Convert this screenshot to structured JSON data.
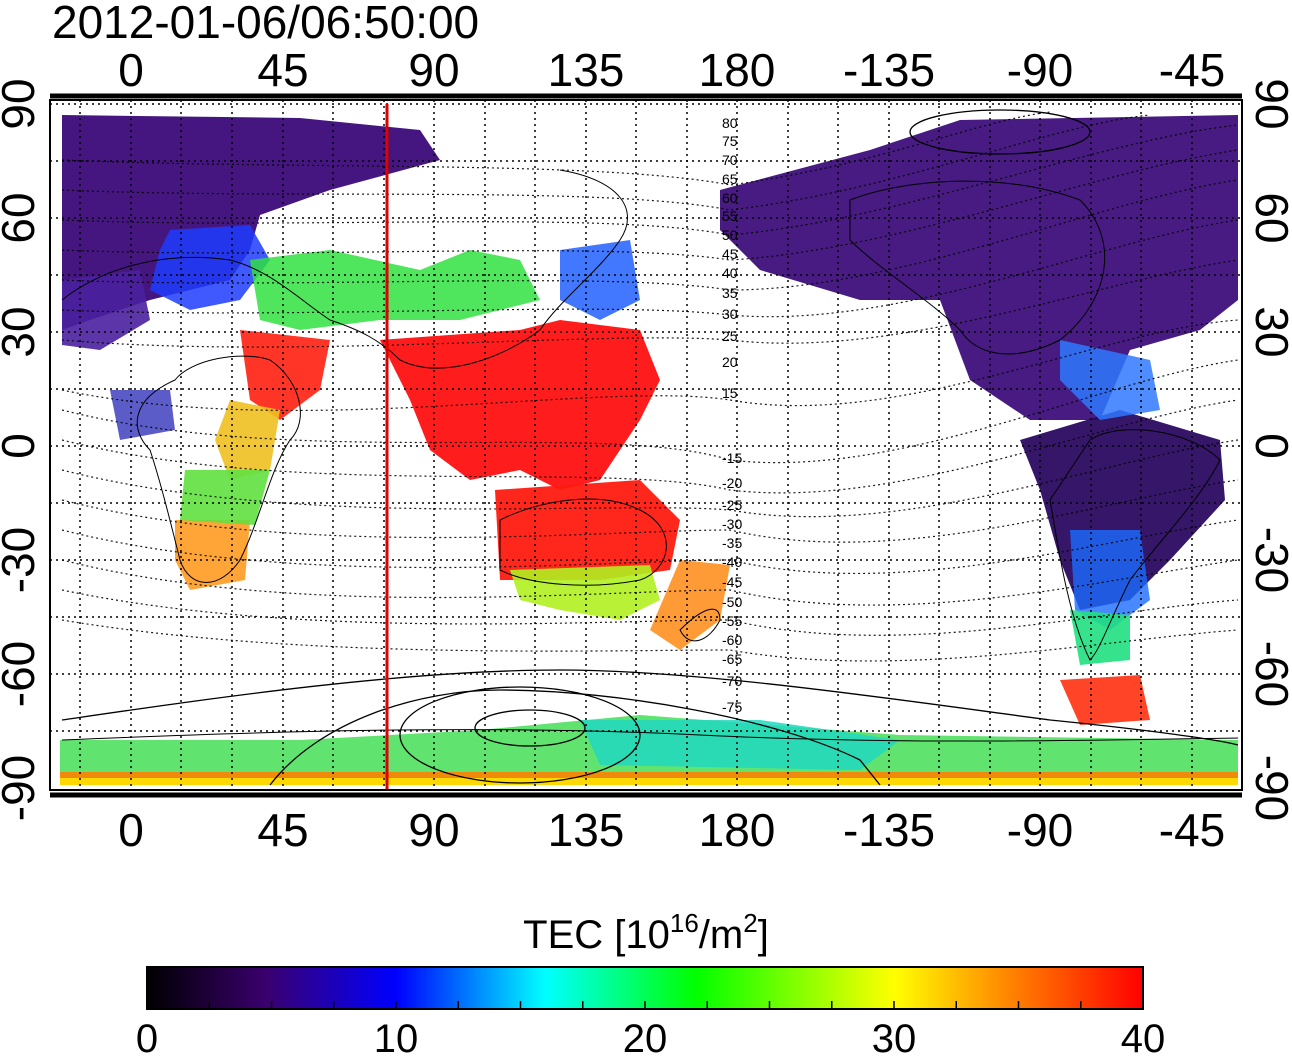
{
  "timestamp": "2012-01-06/06:50:00",
  "axes": {
    "top_ticks": [
      "0",
      "45",
      "90",
      "135",
      "180",
      "-135",
      "-90",
      "-45"
    ],
    "bottom_ticks": [
      "0",
      "45",
      "90",
      "135",
      "180",
      "-135",
      "-90",
      "-45"
    ],
    "left_ticks": [
      "90",
      "60",
      "30",
      "0",
      "-30",
      "-60",
      "-90"
    ],
    "right_ticks": [
      "90",
      "60",
      "30",
      "0",
      "-30",
      "-60",
      "-90"
    ],
    "lon_range_deg": [
      -20,
      315
    ],
    "lat_range_deg": [
      -90,
      90
    ],
    "grid": "dotted, every 15 degrees"
  },
  "map": {
    "marker_longitude_deg": 77,
    "marker_color": "#e00000",
    "magnetic_latitude_contours": [
      "80",
      "75",
      "70",
      "65",
      "60",
      "55",
      "50",
      "45",
      "40",
      "35",
      "30",
      "25",
      "20",
      "15",
      "-15",
      "-20",
      "-25",
      "-30",
      "-35",
      "-40",
      "-45",
      "-50",
      "-55",
      "-60",
      "-65",
      "-70",
      "-75"
    ]
  },
  "colorbar": {
    "title_prefix": "TEC  [10",
    "title_sup1": "16",
    "title_mid": "/m",
    "title_sup2": "2",
    "title_suffix": "]",
    "ticks": [
      "0",
      "10",
      "20",
      "30",
      "40"
    ],
    "range": [
      0,
      40
    ],
    "colormap": [
      "#000000",
      "#3a006e",
      "#0000ff",
      "#00ffff",
      "#00ff00",
      "#ffff00",
      "#ff8000",
      "#ff0000"
    ]
  }
}
